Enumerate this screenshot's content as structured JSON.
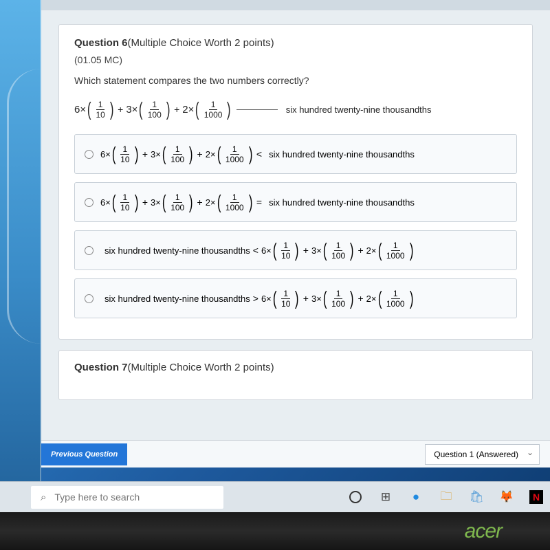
{
  "question6": {
    "header_prefix": "Question 6",
    "header_suffix": "(Multiple Choice Worth 2 points)",
    "code": "(01.05 MC)",
    "prompt": "Which statement compares the two numbers correctly?",
    "expr_coeffs": [
      "6",
      "3",
      "2"
    ],
    "expr_fracs": [
      [
        "1",
        "10"
      ],
      [
        "1",
        "100"
      ],
      [
        "1",
        "1000"
      ]
    ],
    "words_phrase": "six hundred twenty-nine thousandths",
    "options": [
      {
        "rel": "<",
        "expr_first": true
      },
      {
        "rel": "=",
        "expr_first": true
      },
      {
        "rel": "<",
        "expr_first": false
      },
      {
        "rel": ">",
        "expr_first": false
      }
    ]
  },
  "question7": {
    "header_prefix": "Question 7",
    "header_suffix": "(Multiple Choice Worth 2 points)"
  },
  "nav": {
    "prev_label": "Previous Question",
    "progress": "Question 1 (Answered)"
  },
  "taskbar": {
    "search_placeholder": "Type here to search",
    "icons": [
      {
        "name": "cortana-circle-icon",
        "glyph": "circle"
      },
      {
        "name": "task-view-icon",
        "glyph": "⊞",
        "color": "#444"
      },
      {
        "name": "edge-icon",
        "glyph": "●",
        "color": "#1f8ae0"
      },
      {
        "name": "file-explorer-icon",
        "glyph": "🗀",
        "color": "#d9a441"
      },
      {
        "name": "store-icon",
        "glyph": "🛍",
        "color": "#5aa0d8"
      },
      {
        "name": "firefox-icon",
        "glyph": "🦊",
        "color": "#e0730e"
      },
      {
        "name": "netflix-icon",
        "glyph": "N",
        "color": "#e50914",
        "bg": "#000"
      }
    ]
  },
  "brand": "acer",
  "colors": {
    "card_bg": "#ffffff",
    "page_bg": "#e8eef2",
    "option_bg": "#f8fafc",
    "accent": "#2376d8",
    "acer_green": "#7fb84e"
  }
}
